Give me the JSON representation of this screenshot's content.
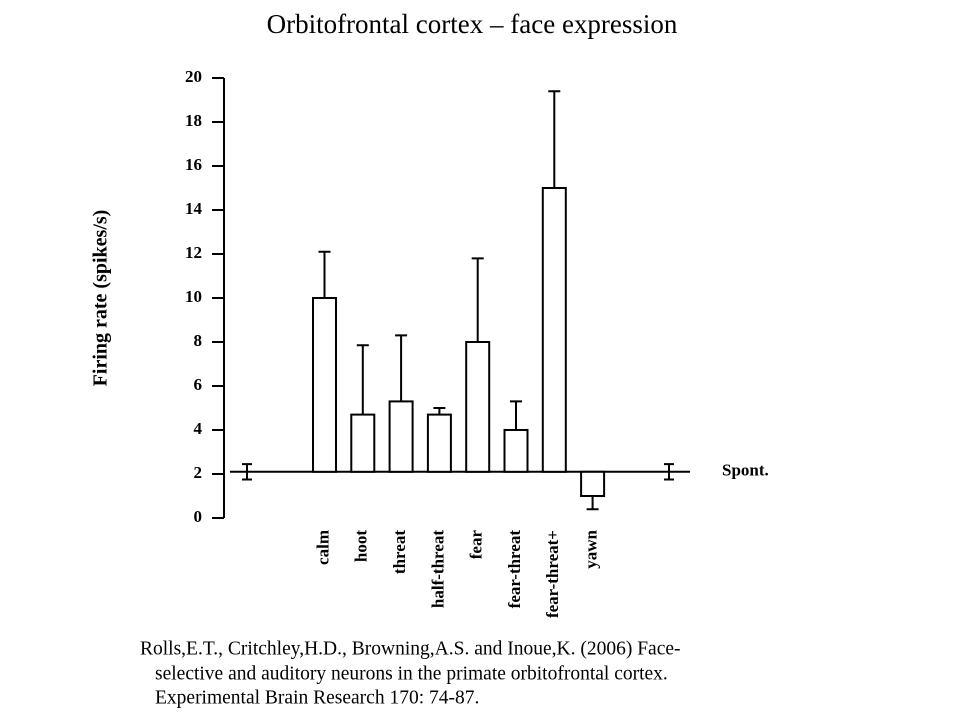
{
  "chart_data": {
    "type": "bar",
    "title": "Orbitofrontal cortex – face expression",
    "y_label": "Firing rate (spikes/s)",
    "categories": [
      "calm",
      "hoot",
      "threat",
      "half-threat",
      "fear",
      "fear-threat",
      "fear-threat+",
      "yawn"
    ],
    "values": [
      10,
      4.7,
      5.3,
      4.7,
      8,
      4,
      15,
      1
    ],
    "errors": [
      2.1,
      3.15,
      3.0,
      0.3,
      3.8,
      1.3,
      4.4,
      0.6
    ],
    "color": "#ffffff",
    "baseline": {
      "label": "Spont.",
      "value": 2.1,
      "error": 0.35
    },
    "ylim": [
      0,
      20
    ],
    "yticks": [
      0,
      2,
      4,
      6,
      8,
      10,
      12,
      14,
      16,
      18,
      20
    ],
    "citation": [
      "Rolls,E.T.,  Critchley,H.D., Browning,A.S. and Inoue,K. (2006) Face-",
      "selective and auditory neurons in the primate orbitofrontal cortex.",
      "Experimental Brain Research 170: 74-87."
    ]
  }
}
